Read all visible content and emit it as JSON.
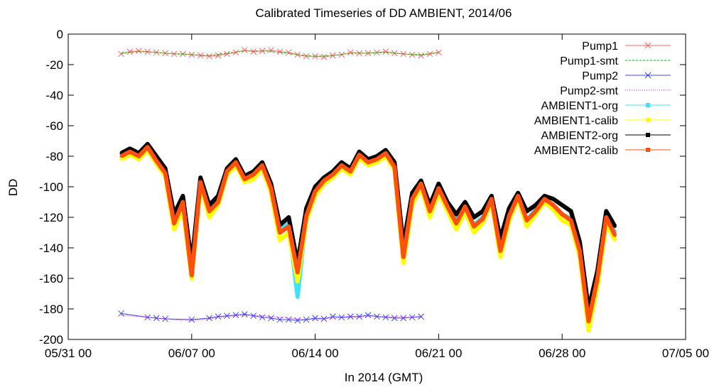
{
  "chart_data": {
    "type": "line",
    "title": "Calibrated Timeseries of DD AMBIENT, 2014/06",
    "xlabel": "In 2014 (GMT)",
    "ylabel": "DD",
    "xlim": [
      "2014-05-31T00:00",
      "2014-07-05T00:00"
    ],
    "ylim": [
      -200,
      0
    ],
    "x_ticks": [
      {
        "t": "2014-05-31T00:00",
        "label": "05/31 00"
      },
      {
        "t": "2014-06-07T00:00",
        "label": "06/07 00"
      },
      {
        "t": "2014-06-14T00:00",
        "label": "06/14 00"
      },
      {
        "t": "2014-06-21T00:00",
        "label": "06/21 00"
      },
      {
        "t": "2014-06-28T00:00",
        "label": "06/28 00"
      },
      {
        "t": "2014-07-05T00:00",
        "label": "07/05 00"
      }
    ],
    "y_ticks": [
      0,
      -20,
      -40,
      -60,
      -80,
      -100,
      -120,
      -140,
      -160,
      -180,
      -200
    ],
    "grid": false,
    "legend_position": "top-right",
    "series": [
      {
        "name": "Pump1",
        "color": "#ff6060",
        "style": "line-x",
        "x": [
          "2014-06-03T00:00",
          "2014-06-03T12:00",
          "2014-06-04T00:00",
          "2014-06-04T12:00",
          "2014-06-05T00:00",
          "2014-06-05T12:00",
          "2014-06-06T00:00",
          "2014-06-06T12:00",
          "2014-06-07T00:00",
          "2014-06-07T12:00",
          "2014-06-08T00:00",
          "2014-06-08T12:00",
          "2014-06-09T00:00",
          "2014-06-09T12:00",
          "2014-06-10T00:00",
          "2014-06-10T12:00",
          "2014-06-11T00:00",
          "2014-06-11T12:00",
          "2014-06-12T00:00",
          "2014-06-12T12:00",
          "2014-06-13T00:00",
          "2014-06-13T12:00",
          "2014-06-14T00:00",
          "2014-06-14T12:00",
          "2014-06-15T00:00",
          "2014-06-15T12:00",
          "2014-06-16T00:00",
          "2014-06-16T12:00",
          "2014-06-17T00:00",
          "2014-06-17T12:00",
          "2014-06-18T00:00",
          "2014-06-18T12:00",
          "2014-06-19T00:00",
          "2014-06-19T12:00",
          "2014-06-20T00:00",
          "2014-06-20T12:00",
          "2014-06-21T00:00"
        ],
        "y": [
          -13,
          -11.5,
          -11,
          -11.5,
          -12,
          -12.5,
          -13,
          -13,
          -13.5,
          -14,
          -14.5,
          -14,
          -13,
          -12,
          -10.5,
          -11.5,
          -11,
          -10.5,
          -11.5,
          -12,
          -13.5,
          -14.5,
          -14.5,
          -15,
          -14,
          -13.5,
          -12,
          -12.5,
          -12.5,
          -12,
          -11.5,
          -12.5,
          -13,
          -13.5,
          -14,
          -13,
          -12
        ]
      },
      {
        "name": "Pump1-smt",
        "color": "#00c000",
        "style": "dashed",
        "x": [
          "2014-06-03T00:00",
          "2014-06-04T00:00",
          "2014-06-05T00:00",
          "2014-06-06T00:00",
          "2014-06-07T00:00",
          "2014-06-08T00:00",
          "2014-06-09T00:00",
          "2014-06-10T00:00",
          "2014-06-11T00:00",
          "2014-06-12T00:00",
          "2014-06-13T00:00",
          "2014-06-14T00:00",
          "2014-06-15T00:00",
          "2014-06-16T00:00",
          "2014-06-17T00:00",
          "2014-06-18T00:00",
          "2014-06-19T00:00",
          "2014-06-20T00:00",
          "2014-06-21T00:00"
        ],
        "y": [
          -12.5,
          -11.5,
          -12,
          -13,
          -13.5,
          -14,
          -12.5,
          -11,
          -11,
          -12,
          -13.5,
          -14.5,
          -14,
          -12.5,
          -12.5,
          -12,
          -13,
          -13.5,
          -12
        ]
      },
      {
        "name": "Pump2",
        "color": "#4040ff",
        "style": "line-x",
        "x": [
          "2014-06-03T00:00",
          "2014-06-04T12:00",
          "2014-06-05T00:00",
          "2014-06-05T12:00",
          "2014-06-07T00:00",
          "2014-06-08T00:00",
          "2014-06-08T12:00",
          "2014-06-09T00:00",
          "2014-06-09T12:00",
          "2014-06-10T00:00",
          "2014-06-10T12:00",
          "2014-06-11T00:00",
          "2014-06-11T12:00",
          "2014-06-12T00:00",
          "2014-06-12T12:00",
          "2014-06-13T00:00",
          "2014-06-13T12:00",
          "2014-06-14T00:00",
          "2014-06-14T12:00",
          "2014-06-15T00:00",
          "2014-06-15T12:00",
          "2014-06-16T00:00",
          "2014-06-16T12:00",
          "2014-06-17T00:00",
          "2014-06-17T12:00",
          "2014-06-18T00:00",
          "2014-06-18T12:00",
          "2014-06-19T00:00",
          "2014-06-19T12:00",
          "2014-06-20T00:00"
        ],
        "y": [
          -183,
          -185.5,
          -186,
          -186.5,
          -187,
          -186,
          -185,
          -184.5,
          -184,
          -183.5,
          -184.5,
          -185.5,
          -186,
          -187,
          -187,
          -187.5,
          -187,
          -186,
          -186.5,
          -185,
          -185.5,
          -185,
          -185,
          -184,
          -185,
          -185.5,
          -186,
          -186,
          -185.5,
          -185
        ]
      },
      {
        "name": "Pump2-smt",
        "color": "#e000e0",
        "style": "dotted",
        "x": [
          "2014-06-03T00:00",
          "2014-06-04T00:00",
          "2014-06-05T00:00",
          "2014-06-06T00:00",
          "2014-06-07T00:00",
          "2014-06-08T00:00",
          "2014-06-09T00:00",
          "2014-06-10T00:00",
          "2014-06-11T00:00",
          "2014-06-12T00:00",
          "2014-06-13T00:00",
          "2014-06-14T00:00",
          "2014-06-15T00:00",
          "2014-06-16T00:00",
          "2014-06-17T00:00",
          "2014-06-18T00:00",
          "2014-06-19T00:00",
          "2014-06-20T00:00"
        ],
        "y": [
          -184,
          -185,
          -186,
          -187,
          -187.5,
          -186.5,
          -185,
          -184,
          -184.5,
          -185.5,
          -186.5,
          -187,
          -186,
          -185.5,
          -185,
          -185,
          -185.5,
          -185.5
        ]
      },
      {
        "name": "AMBIENT1-org",
        "color": "#40e0ff",
        "style": "line-pts",
        "x": [
          "2014-06-03T00:00",
          "2014-06-03T12:00",
          "2014-06-04T00:00",
          "2014-06-04T12:00",
          "2014-06-05T00:00",
          "2014-06-05T12:00",
          "2014-06-06T00:00",
          "2014-06-06T12:00",
          "2014-06-07T00:00",
          "2014-06-07T12:00",
          "2014-06-08T00:00",
          "2014-06-08T12:00",
          "2014-06-09T00:00",
          "2014-06-09T12:00",
          "2014-06-10T00:00",
          "2014-06-10T12:00",
          "2014-06-11T00:00",
          "2014-06-11T12:00",
          "2014-06-12T00:00",
          "2014-06-12T12:00",
          "2014-06-13T00:00",
          "2014-06-13T12:00",
          "2014-06-14T00:00",
          "2014-06-14T12:00",
          "2014-06-15T00:00",
          "2014-06-15T12:00",
          "2014-06-16T00:00",
          "2014-06-16T12:00",
          "2014-06-17T00:00",
          "2014-06-17T12:00",
          "2014-06-18T00:00",
          "2014-06-18T12:00",
          "2014-06-19T00:00",
          "2014-06-19T12:00",
          "2014-06-20T00:00",
          "2014-06-20T12:00",
          "2014-06-21T00:00",
          "2014-06-21T12:00",
          "2014-06-22T00:00",
          "2014-06-22T12:00",
          "2014-06-23T00:00",
          "2014-06-23T12:00",
          "2014-06-24T00:00",
          "2014-06-24T12:00",
          "2014-06-25T00:00",
          "2014-06-25T12:00",
          "2014-06-26T00:00",
          "2014-06-26T12:00",
          "2014-06-27T00:00",
          "2014-06-27T12:00",
          "2014-06-28T00:00",
          "2014-06-28T12:00",
          "2014-06-29T00:00",
          "2014-06-29T12:00",
          "2014-06-30T00:00",
          "2014-06-30T12:00",
          "2014-07-01T00:00"
        ],
        "y": [
          -80,
          -77,
          -80,
          -74,
          -82,
          -90,
          -120,
          -110,
          -152,
          -96,
          -115,
          -108,
          -90,
          -84,
          -95,
          -92,
          -86,
          -100,
          -128,
          -124,
          -172,
          -118,
          -103,
          -96,
          -92,
          -86,
          -90,
          -79,
          -84,
          -82,
          -78,
          -86,
          -145,
          -108,
          -98,
          -116,
          -100,
          -112,
          -122,
          -112,
          -125,
          -120,
          -108,
          -140,
          -118,
          -106,
          -122,
          -115,
          -108,
          -112,
          -118,
          -121,
          -140,
          -180,
          -160,
          -120,
          -130
        ]
      },
      {
        "name": "AMBIENT1-calib",
        "color": "#ffff00",
        "style": "line-pts",
        "x": [
          "2014-06-03T00:00",
          "2014-06-03T12:00",
          "2014-06-04T00:00",
          "2014-06-04T12:00",
          "2014-06-05T00:00",
          "2014-06-05T12:00",
          "2014-06-06T00:00",
          "2014-06-06T12:00",
          "2014-06-07T00:00",
          "2014-06-07T12:00",
          "2014-06-08T00:00",
          "2014-06-08T12:00",
          "2014-06-09T00:00",
          "2014-06-09T12:00",
          "2014-06-10T00:00",
          "2014-06-10T12:00",
          "2014-06-11T00:00",
          "2014-06-11T12:00",
          "2014-06-12T00:00",
          "2014-06-12T12:00",
          "2014-06-13T00:00",
          "2014-06-13T12:00",
          "2014-06-14T00:00",
          "2014-06-14T12:00",
          "2014-06-15T00:00",
          "2014-06-15T12:00",
          "2014-06-16T00:00",
          "2014-06-16T12:00",
          "2014-06-17T00:00",
          "2014-06-17T12:00",
          "2014-06-18T00:00",
          "2014-06-18T12:00",
          "2014-06-19T00:00",
          "2014-06-19T12:00",
          "2014-06-20T00:00",
          "2014-06-20T12:00",
          "2014-06-21T00:00",
          "2014-06-21T12:00",
          "2014-06-22T00:00",
          "2014-06-22T12:00",
          "2014-06-23T00:00",
          "2014-06-23T12:00",
          "2014-06-24T00:00",
          "2014-06-24T12:00",
          "2014-06-25T00:00",
          "2014-06-25T12:00",
          "2014-06-26T00:00",
          "2014-06-26T12:00",
          "2014-06-27T00:00",
          "2014-06-27T12:00",
          "2014-06-28T00:00",
          "2014-06-28T12:00",
          "2014-06-29T00:00",
          "2014-06-29T12:00",
          "2014-06-30T00:00",
          "2014-06-30T12:00",
          "2014-07-01T00:00"
        ],
        "y": [
          -82,
          -79,
          -82,
          -76,
          -85,
          -93,
          -128,
          -114,
          -160,
          -99,
          -120,
          -112,
          -92,
          -86,
          -97,
          -95,
          -88,
          -104,
          -135,
          -130,
          -162,
          -122,
          -106,
          -98,
          -94,
          -88,
          -92,
          -81,
          -86,
          -84,
          -80,
          -89,
          -150,
          -112,
          -100,
          -120,
          -104,
          -116,
          -128,
          -116,
          -130,
          -124,
          -110,
          -146,
          -122,
          -108,
          -126,
          -118,
          -110,
          -115,
          -122,
          -125,
          -146,
          -194,
          -165,
          -124,
          -135
        ]
      },
      {
        "name": "AMBIENT2-org",
        "color": "#000000",
        "style": "line-pts",
        "x": [
          "2014-06-03T00:00",
          "2014-06-03T12:00",
          "2014-06-04T00:00",
          "2014-06-04T12:00",
          "2014-06-05T00:00",
          "2014-06-05T12:00",
          "2014-06-06T00:00",
          "2014-06-06T12:00",
          "2014-06-07T00:00",
          "2014-06-07T12:00",
          "2014-06-08T00:00",
          "2014-06-08T12:00",
          "2014-06-09T00:00",
          "2014-06-09T12:00",
          "2014-06-10T00:00",
          "2014-06-10T12:00",
          "2014-06-11T00:00",
          "2014-06-11T12:00",
          "2014-06-12T00:00",
          "2014-06-12T12:00",
          "2014-06-13T00:00",
          "2014-06-13T12:00",
          "2014-06-14T00:00",
          "2014-06-14T12:00",
          "2014-06-15T00:00",
          "2014-06-15T12:00",
          "2014-06-16T00:00",
          "2014-06-16T12:00",
          "2014-06-17T00:00",
          "2014-06-17T12:00",
          "2014-06-18T00:00",
          "2014-06-18T12:00",
          "2014-06-19T00:00",
          "2014-06-19T12:00",
          "2014-06-20T00:00",
          "2014-06-20T12:00",
          "2014-06-21T00:00",
          "2014-06-21T12:00",
          "2014-06-22T00:00",
          "2014-06-22T12:00",
          "2014-06-23T00:00",
          "2014-06-23T12:00",
          "2014-06-24T00:00",
          "2014-06-24T12:00",
          "2014-06-25T00:00",
          "2014-06-25T12:00",
          "2014-06-26T00:00",
          "2014-06-26T12:00",
          "2014-06-27T00:00",
          "2014-06-27T12:00",
          "2014-06-28T00:00",
          "2014-06-28T12:00",
          "2014-06-29T00:00",
          "2014-06-29T12:00",
          "2014-06-30T00:00",
          "2014-06-30T12:00",
          "2014-07-01T00:00"
        ],
        "y": [
          -78,
          -75,
          -78,
          -72,
          -80,
          -88,
          -118,
          -106,
          -150,
          -94,
          -112,
          -106,
          -88,
          -82,
          -93,
          -90,
          -84,
          -98,
          -125,
          -120,
          -150,
          -114,
          -100,
          -94,
          -90,
          -84,
          -88,
          -77,
          -82,
          -80,
          -76,
          -84,
          -138,
          -104,
          -96,
          -112,
          -98,
          -110,
          -118,
          -110,
          -120,
          -116,
          -106,
          -134,
          -114,
          -104,
          -116,
          -112,
          -106,
          -108,
          -112,
          -116,
          -136,
          -180,
          -155,
          -116,
          -126
        ]
      },
      {
        "name": "AMBIENT2-calib",
        "color": "#ff5010",
        "style": "line-pts",
        "x": [
          "2014-06-03T00:00",
          "2014-06-03T12:00",
          "2014-06-04T00:00",
          "2014-06-04T12:00",
          "2014-06-05T00:00",
          "2014-06-05T12:00",
          "2014-06-06T00:00",
          "2014-06-06T12:00",
          "2014-06-07T00:00",
          "2014-06-07T12:00",
          "2014-06-08T00:00",
          "2014-06-08T12:00",
          "2014-06-09T00:00",
          "2014-06-09T12:00",
          "2014-06-10T00:00",
          "2014-06-10T12:00",
          "2014-06-11T00:00",
          "2014-06-11T12:00",
          "2014-06-12T00:00",
          "2014-06-12T12:00",
          "2014-06-13T00:00",
          "2014-06-13T12:00",
          "2014-06-14T00:00",
          "2014-06-14T12:00",
          "2014-06-15T00:00",
          "2014-06-15T12:00",
          "2014-06-16T00:00",
          "2014-06-16T12:00",
          "2014-06-17T00:00",
          "2014-06-17T12:00",
          "2014-06-18T00:00",
          "2014-06-18T12:00",
          "2014-06-19T00:00",
          "2014-06-19T12:00",
          "2014-06-20T00:00",
          "2014-06-20T12:00",
          "2014-06-21T00:00",
          "2014-06-21T12:00",
          "2014-06-22T00:00",
          "2014-06-22T12:00",
          "2014-06-23T00:00",
          "2014-06-23T12:00",
          "2014-06-24T00:00",
          "2014-06-24T12:00",
          "2014-06-25T00:00",
          "2014-06-25T12:00",
          "2014-06-26T00:00",
          "2014-06-26T12:00",
          "2014-06-27T00:00",
          "2014-06-27T12:00",
          "2014-06-28T00:00",
          "2014-06-28T12:00",
          "2014-06-29T00:00",
          "2014-06-29T12:00",
          "2014-06-30T00:00",
          "2014-06-30T12:00",
          "2014-07-01T00:00"
        ],
        "y": [
          -80,
          -77,
          -80,
          -74,
          -83,
          -91,
          -124,
          -110,
          -158,
          -97,
          -116,
          -110,
          -90,
          -84,
          -95,
          -92,
          -86,
          -101,
          -130,
          -126,
          -156,
          -119,
          -103,
          -96,
          -92,
          -86,
          -90,
          -79,
          -84,
          -82,
          -78,
          -87,
          -146,
          -108,
          -98,
          -116,
          -101,
          -113,
          -124,
          -113,
          -126,
          -121,
          -108,
          -142,
          -119,
          -106,
          -122,
          -116,
          -108,
          -112,
          -118,
          -122,
          -142,
          -188,
          -160,
          -120,
          -132
        ]
      }
    ]
  }
}
